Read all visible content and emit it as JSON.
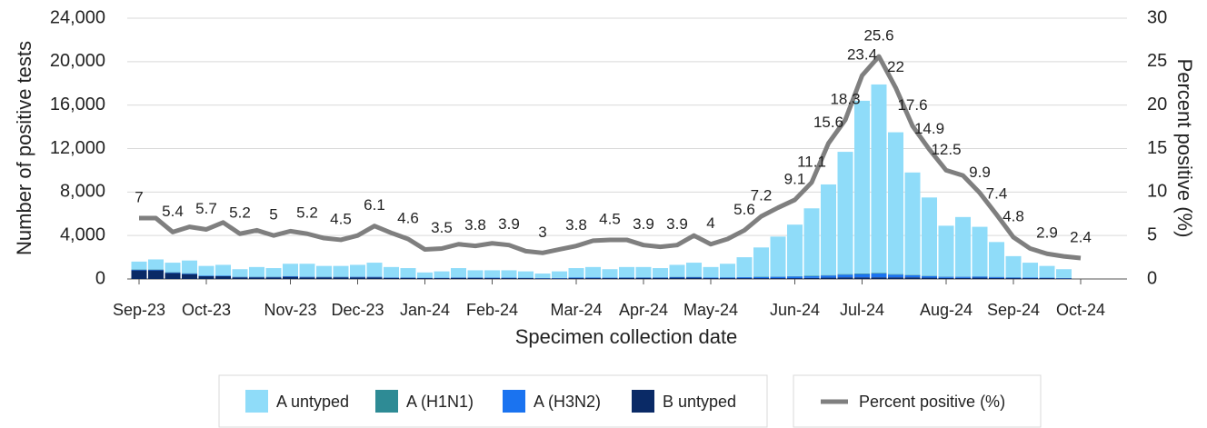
{
  "chart_data": {
    "type": "bar",
    "stacked": true,
    "x_label": "Specimen collection date",
    "y_label": "Number of positive tests",
    "y2_label": "Percent positive (%)",
    "categories": [
      "Sep-23",
      null,
      null,
      null,
      "Oct-23",
      null,
      null,
      null,
      null,
      "Nov-23",
      null,
      null,
      null,
      "Dec-23",
      null,
      null,
      null,
      "Jan-24",
      null,
      null,
      null,
      "Feb-24",
      null,
      null,
      null,
      null,
      "Mar-24",
      null,
      null,
      null,
      "Apr-24",
      null,
      null,
      null,
      "May-24",
      null,
      null,
      null,
      null,
      "Jun-24",
      null,
      null,
      null,
      "Jul-24",
      null,
      null,
      null,
      null,
      "Aug-24",
      null,
      null,
      null,
      "Sep-24",
      null,
      null,
      null,
      "Oct-24"
    ],
    "ylim": [
      0,
      24000
    ],
    "yticks": [
      0,
      {
        "value": 4000,
        "label": "4,000"
      },
      {
        "value": 8000,
        "label": "8,000"
      },
      {
        "value": 12000,
        "label": "12,000"
      },
      {
        "value": 16000,
        "label": "16,000"
      },
      {
        "value": 20000,
        "label": "20,000"
      },
      {
        "value": 24000,
        "label": "24,000"
      }
    ],
    "y2lim": [
      0,
      30
    ],
    "y2ticks": [
      0,
      5,
      10,
      15,
      20,
      25,
      30
    ],
    "grid": true,
    "legend": "bottom",
    "series": [
      {
        "name": "A untyped",
        "color": "#8fdcf9",
        "values": [
          720,
          920,
          870,
          1170,
          880,
          980,
          690,
          890,
          790,
          1130,
          1180,
          990,
          990,
          1080,
          1280,
          940,
          840,
          480,
          580,
          840,
          640,
          660,
          660,
          580,
          400,
          600,
          850,
          950,
          760,
          930,
          930,
          830,
          1100,
          1300,
          950,
          1240,
          1820,
          2690,
          3670,
          4740,
          6210,
          8340,
          11250,
          15890,
          17340,
          13050,
          9410,
          7200,
          4670,
          5480,
          4560,
          3200,
          1940,
          1360,
          1070,
          800,
          null
        ]
      },
      {
        "name": "A (H1N1)",
        "color": "#2e8b95",
        "values": [
          30,
          30,
          30,
          30,
          20,
          20,
          20,
          20,
          20,
          20,
          20,
          20,
          20,
          20,
          20,
          20,
          20,
          10,
          10,
          20,
          20,
          20,
          20,
          10,
          10,
          10,
          20,
          20,
          20,
          20,
          20,
          20,
          20,
          20,
          20,
          20,
          20,
          30,
          30,
          30,
          40,
          40,
          50,
          60,
          60,
          50,
          40,
          30,
          30,
          20,
          20,
          20,
          20,
          10,
          10,
          10,
          null
        ]
      },
      {
        "name": "A (H3N2)",
        "color": "#1a73f0",
        "values": [
          50,
          50,
          50,
          50,
          50,
          50,
          40,
          40,
          40,
          50,
          50,
          40,
          40,
          50,
          50,
          40,
          40,
          30,
          30,
          40,
          40,
          40,
          40,
          30,
          30,
          30,
          50,
          50,
          40,
          50,
          50,
          50,
          60,
          60,
          50,
          60,
          80,
          100,
          120,
          150,
          150,
          200,
          250,
          300,
          350,
          250,
          200,
          150,
          100,
          100,
          100,
          80,
          60,
          50,
          40,
          30,
          null
        ]
      },
      {
        "name": "B untyped",
        "color": "#0a2a66",
        "values": [
          800,
          800,
          550,
          450,
          250,
          250,
          150,
          150,
          150,
          200,
          150,
          150,
          150,
          150,
          150,
          100,
          100,
          80,
          80,
          100,
          100,
          80,
          80,
          80,
          60,
          60,
          80,
          80,
          80,
          100,
          100,
          100,
          120,
          120,
          80,
          80,
          80,
          80,
          80,
          80,
          100,
          120,
          150,
          150,
          150,
          150,
          150,
          120,
          100,
          100,
          120,
          100,
          80,
          80,
          80,
          60,
          null
        ]
      },
      {
        "name": "Percent positive (%)",
        "type": "line",
        "axis": "y2",
        "color": "#7f7f7f",
        "values": [
          7,
          7,
          5.4,
          6,
          5.7,
          6.5,
          5.2,
          5.6,
          5,
          5.5,
          5.2,
          4.7,
          4.5,
          5,
          6.1,
          5.3,
          4.6,
          3.4,
          3.5,
          4,
          3.8,
          4.1,
          3.9,
          3.2,
          3,
          3.4,
          3.8,
          4.4,
          4.5,
          4.5,
          3.9,
          3.7,
          3.9,
          5,
          4,
          4.6,
          5.6,
          7.2,
          8.2,
          9.1,
          11.1,
          15.6,
          18.3,
          23.4,
          25.6,
          22,
          17.6,
          14.9,
          12.5,
          11.9,
          9.9,
          7.4,
          4.8,
          3.5,
          2.9,
          2.6,
          2.4
        ],
        "value_labels": [
          "7",
          null,
          "5.4",
          null,
          "5.7",
          null,
          "5.2",
          null,
          "5",
          null,
          "5.2",
          null,
          "4.5",
          null,
          "6.1",
          null,
          "4.6",
          null,
          "3.5",
          null,
          "3.8",
          null,
          "3.9",
          null,
          "3",
          null,
          "3.8",
          null,
          "4.5",
          null,
          "3.9",
          null,
          "3.9",
          null,
          "4",
          null,
          "5.6",
          "7.2",
          null,
          "9.1",
          "11.1",
          "15.6",
          "18.3",
          "23.4",
          "25.6",
          "22",
          "17.6",
          "14.9",
          "12.5",
          null,
          "9.9",
          "7.4",
          "4.8",
          null,
          "2.9",
          null,
          "2.4"
        ]
      }
    ]
  }
}
